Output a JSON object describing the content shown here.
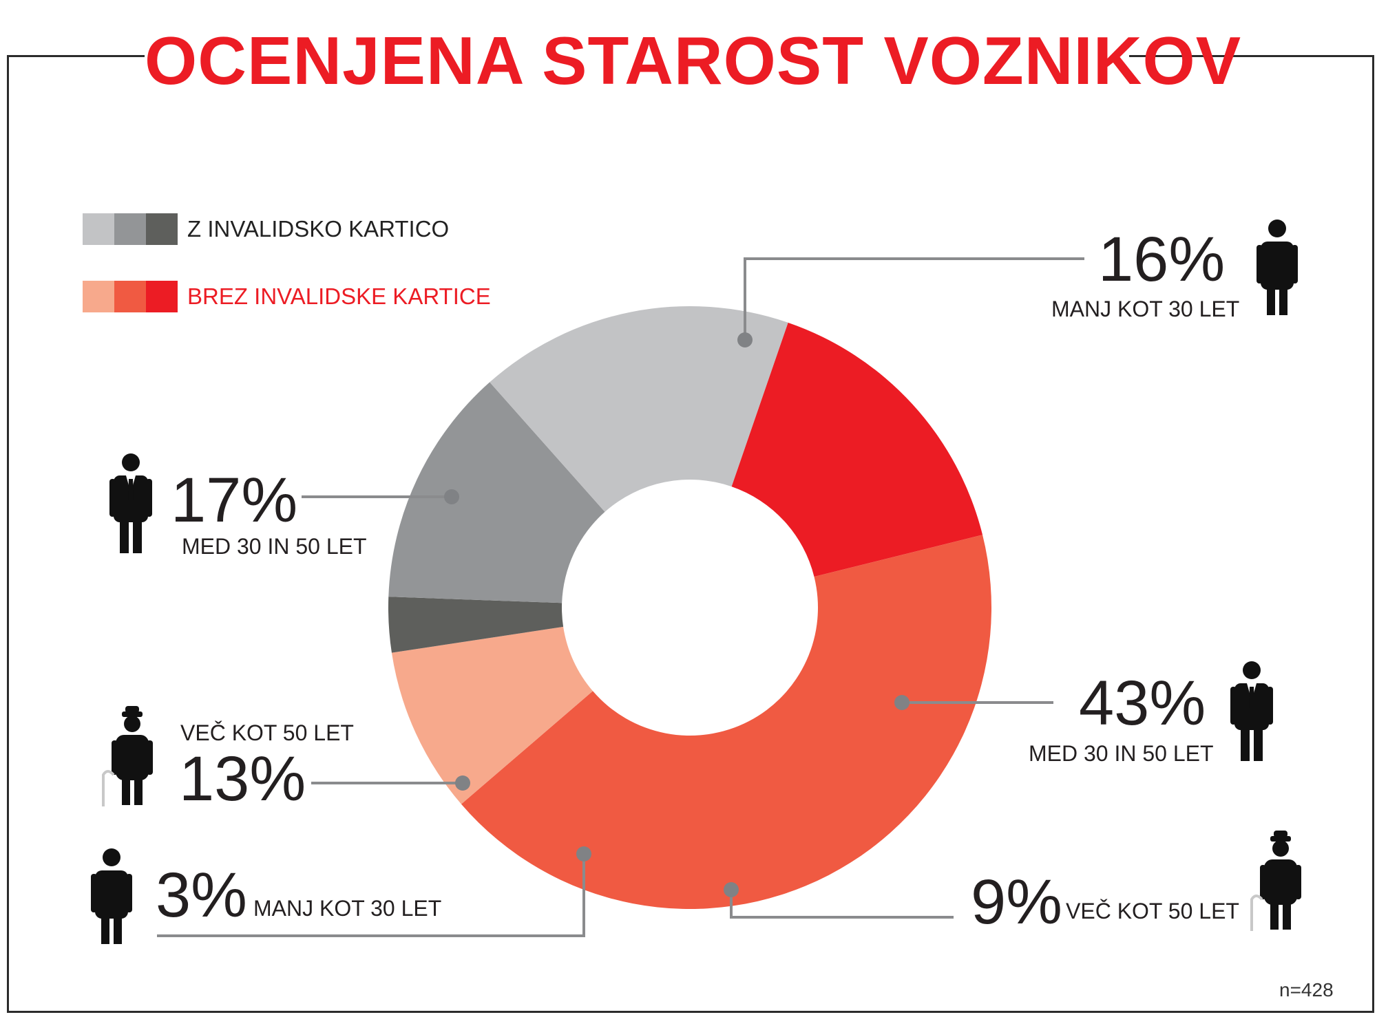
{
  "title": "OCENJENA STAROST VOZNIKOV",
  "sample": "n=428",
  "legend": [
    {
      "label": "Z INVALIDSKO KARTICO",
      "colors": [
        "#c2c3c5",
        "#939597",
        "#5e5f5c"
      ],
      "text_color": "#222222"
    },
    {
      "label": "BREZ INVALIDSKE KARTICE",
      "colors": [
        "#f7a98c",
        "#f05a42",
        "#ec1c24"
      ],
      "text_color": "#ec1c24"
    }
  ],
  "chart_data": {
    "type": "pie",
    "variant": "donut",
    "title": "OCENJENA STAROST VOZNIKOV",
    "unit": "%",
    "legend_placement": "top-left",
    "slices": [
      {
        "group": "BREZ INVALIDSKE KARTICE",
        "category": "MANJ KOT 30 LET",
        "value": 16,
        "label": "16%",
        "color": "#ec1c24"
      },
      {
        "group": "BREZ INVALIDSKE KARTICE",
        "category": "MED 30 IN 50 LET",
        "value": 43,
        "label": "43%",
        "color": "#f05a42"
      },
      {
        "group": "BREZ INVALIDSKE KARTICE",
        "category": "VEČ KOT 50 LET",
        "value": 9,
        "label": "9%",
        "color": "#f7a98c"
      },
      {
        "group": "Z INVALIDSKO KARTICO",
        "category": "MANJ KOT 30 LET",
        "value": 3,
        "label": "3%",
        "color": "#5e5f5c"
      },
      {
        "group": "Z INVALIDSKO KARTICO",
        "category": "VEČ KOT 50 LET",
        "value": 13,
        "label": "13%",
        "color": "#939597"
      },
      {
        "group": "Z INVALIDSKO KARTICO",
        "category": "MED 30 IN 50 LET",
        "value": 17,
        "label": "17%",
        "color": "#c2c3c5"
      }
    ]
  },
  "icons": {
    "young": "young-person-icon",
    "middle": "businessman-icon",
    "old": "elderly-person-with-cane-icon"
  }
}
